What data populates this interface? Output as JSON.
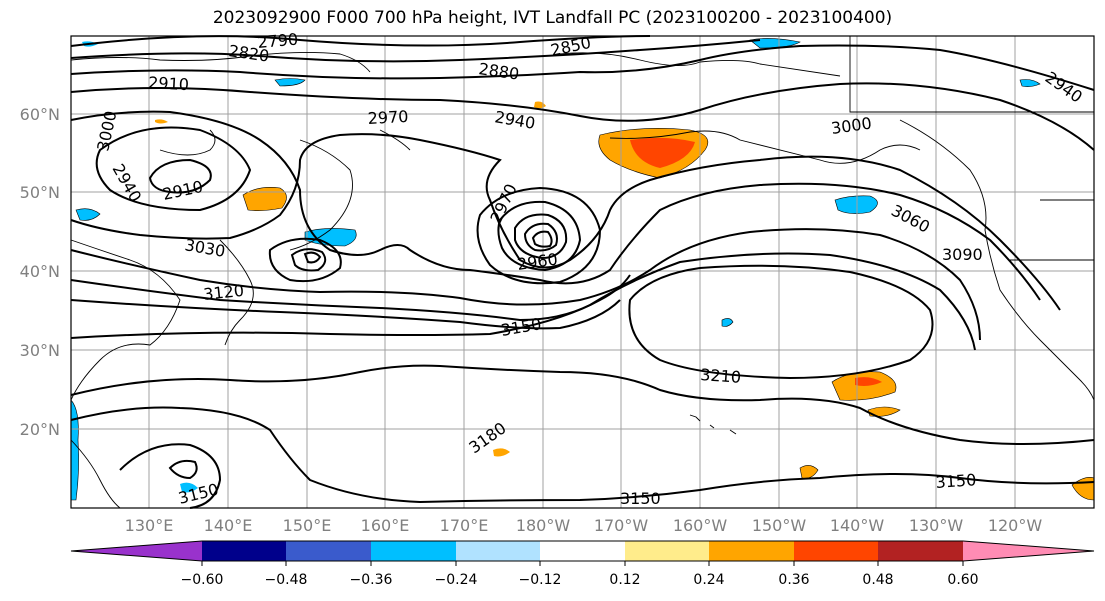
{
  "title": "2023092900 F000 700 hPa height, IVT Landfall PC (2023100200 - 2023100400)",
  "map": {
    "lat_labels": [
      "60°N",
      "50°N",
      "40°N",
      "30°N",
      "20°N"
    ],
    "lon_labels": [
      "130°E",
      "140°E",
      "150°E",
      "160°E",
      "170°E",
      "180°W",
      "170°W",
      "160°W",
      "150°W",
      "140°W",
      "130°W",
      "120°W"
    ],
    "contour_labels": [
      "2820",
      "2790",
      "2850",
      "2880",
      "2910",
      "2940",
      "2970",
      "3000",
      "2940",
      "2910",
      "3030",
      "3120",
      "2970",
      "2960",
      "3150",
      "3060",
      "3090",
      "3000",
      "2940",
      "3210",
      "3180",
      "3150",
      "3150",
      "3150"
    ]
  },
  "colorbar": {
    "colors": [
      "#9932cc",
      "#00008b",
      "#3a5bcc",
      "#00bfff",
      "#b0e2ff",
      "#ffffff",
      "#ffec8b",
      "#ffa500",
      "#ff4500",
      "#b22222",
      "#ff8cb4"
    ],
    "tick_labels": [
      "−0.60",
      "−0.48",
      "−0.36",
      "−0.24",
      "−0.12",
      "0.12",
      "0.24",
      "0.36",
      "0.48",
      "0.60"
    ]
  },
  "colors": {
    "grid": "#a0a0a0",
    "axis_label": "#808080"
  }
}
